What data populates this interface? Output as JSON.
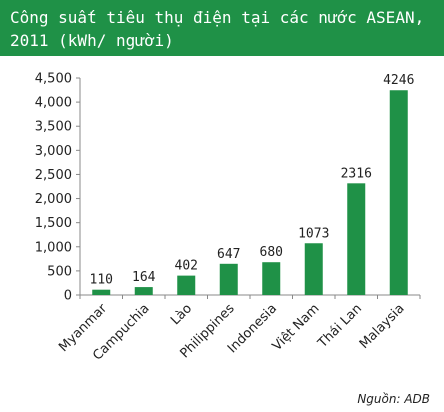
{
  "header": {
    "title_line1": "Công suất tiêu thụ điện tại các nước ASEAN,",
    "title_line2": "2011 (kWh/ người)"
  },
  "source": "Nguồn: ADB",
  "colors": {
    "header_bg": "#1f9147",
    "bar": "#1f9147",
    "axis": "#888888"
  },
  "chart_data": {
    "type": "bar",
    "title": "Công suất tiêu thụ điện tại các nước ASEAN, 2011 (kWh/ người)",
    "categories": [
      "Myanmar",
      "Campuchia",
      "Lào",
      "Philippines",
      "Indonesia",
      "Việt Nam",
      "Thái Lan",
      "Malaysia"
    ],
    "values": [
      110,
      164,
      402,
      647,
      680,
      1073,
      2316,
      4246
    ],
    "data_labels": [
      "110",
      "164",
      "402",
      "647",
      "680",
      "1073",
      "2316",
      "4246"
    ],
    "y_ticks": [
      0,
      500,
      1000,
      1500,
      2000,
      2500,
      3000,
      3500,
      4000,
      4500
    ],
    "y_tick_labels": [
      "0",
      "500",
      "1,000",
      "1,500",
      "2,000",
      "2,500",
      "3,000",
      "3,500",
      "4,000",
      "4,500"
    ],
    "ylim": [
      0,
      4500
    ],
    "xlabel": "",
    "ylabel": "",
    "grid": false,
    "legend": "none"
  }
}
